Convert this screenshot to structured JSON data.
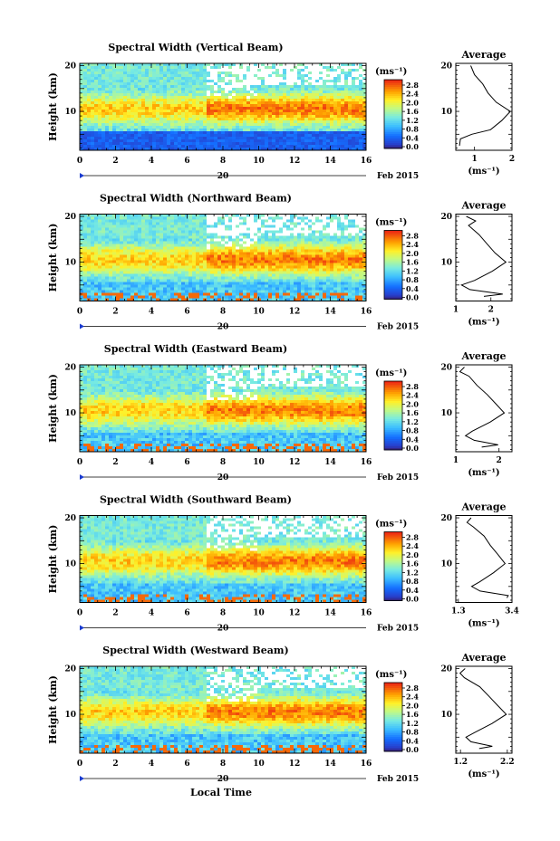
{
  "figure": {
    "xlabel": "Local Time",
    "date_label": "Feb 2015",
    "day_label": "20",
    "ylabel": "Height (km)",
    "avg_title": "Average",
    "units": "(ms⁻¹)"
  },
  "chart_data": [
    {
      "type": "heatmap",
      "title": "Spectral Width (Vertical Beam)",
      "x_ticks": [
        0,
        2,
        4,
        6,
        8,
        10,
        12,
        14,
        16
      ],
      "xlim": [
        0,
        16
      ],
      "y_ticks": [
        10,
        20
      ],
      "ylim": [
        1.5,
        20.5
      ],
      "colorbar": {
        "ticks": [
          "2.8",
          "2.4",
          "2.0",
          "1.6",
          "1.2",
          "0.8",
          "0.4",
          "0.0"
        ],
        "range": [
          0.0,
          2.8
        ]
      },
      "average": {
        "xlim": [
          0.5,
          2.0
        ],
        "x_ticks": [
          1,
          2
        ],
        "x_tick_labels": [
          "1",
          "2"
        ],
        "x_ticks_minor": [
          1.5
        ],
        "heights": [
          2.5,
          4,
          5,
          6,
          8,
          10,
          12,
          14,
          16,
          18,
          20
        ],
        "values": [
          0.6,
          0.65,
          0.9,
          1.4,
          1.75,
          1.95,
          1.6,
          1.35,
          1.2,
          1.0,
          0.9
        ]
      }
    },
    {
      "type": "heatmap",
      "title": "Spectral Width (Northward Beam)",
      "x_ticks": [
        0,
        2,
        4,
        6,
        8,
        10,
        12,
        14,
        16
      ],
      "xlim": [
        0,
        16
      ],
      "y_ticks": [
        10,
        20
      ],
      "ylim": [
        1.5,
        20.5
      ],
      "colorbar": {
        "ticks": [
          "2.8",
          "2.4",
          "2.0",
          "1.6",
          "1.2",
          "0.8",
          "0.4",
          "0.0"
        ],
        "range": [
          0.0,
          2.8
        ]
      },
      "average": {
        "xlim": [
          1.0,
          2.6
        ],
        "x_ticks": [
          1,
          2
        ],
        "x_tick_labels": [
          "1",
          "2"
        ],
        "heights": [
          2.5,
          3,
          4,
          5,
          6,
          8,
          10,
          12,
          14,
          16,
          18,
          19,
          20
        ],
        "values": [
          1.8,
          2.3,
          1.4,
          1.2,
          1.5,
          2.0,
          2.4,
          2.1,
          1.9,
          1.7,
          1.4,
          1.6,
          1.3
        ]
      }
    },
    {
      "type": "heatmap",
      "title": "Spectral Width (Eastward Beam)",
      "x_ticks": [
        0,
        2,
        4,
        6,
        8,
        10,
        12,
        14,
        16
      ],
      "xlim": [
        0,
        16
      ],
      "y_ticks": [
        10,
        20
      ],
      "ylim": [
        1.5,
        20.5
      ],
      "colorbar": {
        "ticks": [
          "2.8",
          "2.4",
          "2.0",
          "1.6",
          "1.2",
          "0.8",
          "0.4",
          "0.0"
        ],
        "range": [
          0.0,
          2.8
        ]
      },
      "average": {
        "xlim": [
          1.0,
          2.3
        ],
        "x_ticks": [
          1,
          2
        ],
        "x_tick_labels": [
          "1",
          "2"
        ],
        "heights": [
          2.5,
          3,
          4,
          5,
          6,
          8,
          10,
          12,
          14,
          16,
          18,
          19,
          20
        ],
        "values": [
          1.6,
          2.0,
          1.4,
          1.2,
          1.4,
          1.8,
          2.1,
          1.9,
          1.7,
          1.5,
          1.3,
          1.1,
          1.2
        ]
      }
    },
    {
      "type": "heatmap",
      "title": "Spectral Width (Southward Beam)",
      "x_ticks": [
        0,
        2,
        4,
        6,
        8,
        10,
        12,
        14,
        16
      ],
      "xlim": [
        0,
        16
      ],
      "y_ticks": [
        10,
        20
      ],
      "ylim": [
        1.5,
        20.5
      ],
      "colorbar": {
        "ticks": [
          "2.8",
          "2.4",
          "2.0",
          "1.6",
          "1.2",
          "0.8",
          "0.4",
          "0.0"
        ],
        "range": [
          0.0,
          2.8
        ]
      },
      "average": {
        "xlim": [
          1.2,
          3.4
        ],
        "x_ticks": [
          1.3,
          3.4
        ],
        "x_tick_labels": [
          "1.3",
          "3.4"
        ],
        "heights": [
          2.5,
          3,
          4,
          5,
          6,
          8,
          10,
          12,
          14,
          16,
          18,
          19,
          20
        ],
        "values": [
          3.2,
          3.3,
          2.2,
          1.8,
          2.1,
          2.7,
          3.1,
          2.9,
          2.6,
          2.3,
          1.9,
          1.6,
          1.8
        ]
      }
    },
    {
      "type": "heatmap",
      "title": "Spectral Width (Westward Beam)",
      "x_ticks": [
        0,
        2,
        4,
        6,
        8,
        10,
        12,
        14,
        16
      ],
      "xlim": [
        0,
        16
      ],
      "y_ticks": [
        10,
        20
      ],
      "ylim": [
        1.5,
        20.5
      ],
      "colorbar": {
        "ticks": [
          "2.8",
          "2.4",
          "2.0",
          "1.6",
          "1.2",
          "0.8",
          "0.4",
          "0.0"
        ],
        "range": [
          0.0,
          2.8
        ]
      },
      "average": {
        "xlim": [
          1.1,
          2.3
        ],
        "x_ticks": [
          1.2,
          2.2
        ],
        "x_tick_labels": [
          "1.2",
          "2.2"
        ],
        "heights": [
          2.5,
          3,
          4,
          5,
          6,
          8,
          10,
          12,
          14,
          16,
          18,
          19,
          20
        ],
        "values": [
          1.6,
          1.9,
          1.4,
          1.3,
          1.5,
          1.9,
          2.2,
          2.0,
          1.8,
          1.6,
          1.3,
          1.2,
          1.3
        ]
      }
    }
  ]
}
